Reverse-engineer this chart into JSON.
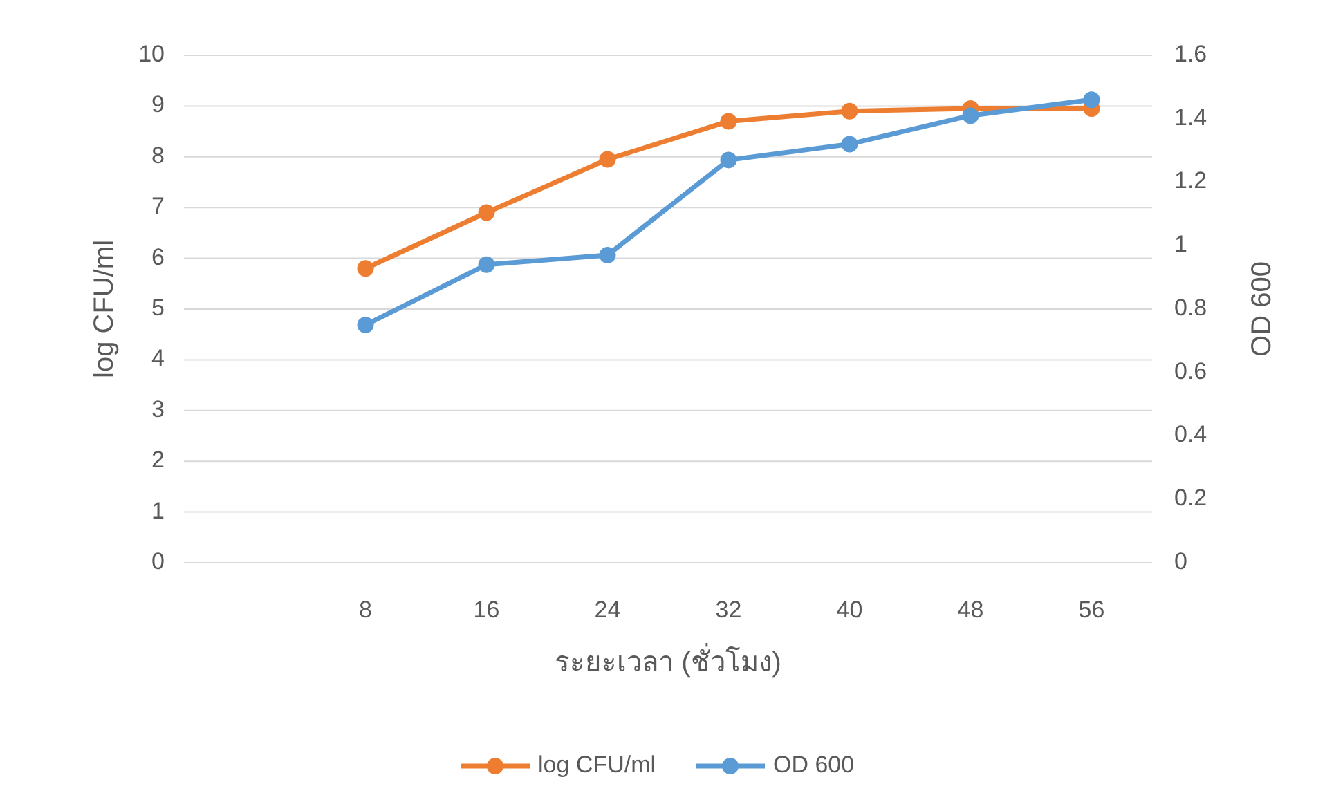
{
  "chart_data": {
    "type": "line",
    "xlabel": "ระยะเวลา (ชั่วโมง)",
    "ylabel": "log CFU/ml",
    "y2label": "OD 600",
    "categories": [
      null,
      "8",
      "16",
      "24",
      "32",
      "40",
      "48",
      "56"
    ],
    "series": [
      {
        "name": "log CFU/ml",
        "color": "#ed7d31",
        "values": [
          null,
          5.8,
          6.9,
          7.95,
          8.7,
          8.9,
          8.95,
          8.95
        ]
      },
      {
        "name": "OD 600",
        "color": "#5b9bd5",
        "axis": "y2",
        "values": [
          null,
          0.75,
          0.94,
          0.97,
          1.27,
          1.32,
          1.41,
          1.46
        ]
      }
    ],
    "ylim": [
      0,
      10
    ],
    "yticks": [
      0,
      1,
      2,
      3,
      4,
      5,
      6,
      7,
      8,
      9,
      10
    ],
    "y2lim": [
      0,
      1.6
    ],
    "y2ticks": [
      0,
      0.2,
      0.4,
      0.6,
      0.8,
      1,
      1.2,
      1.4,
      1.6
    ],
    "grid": "y",
    "legend": "bottom",
    "marker": "circle",
    "line_style": "solid"
  }
}
